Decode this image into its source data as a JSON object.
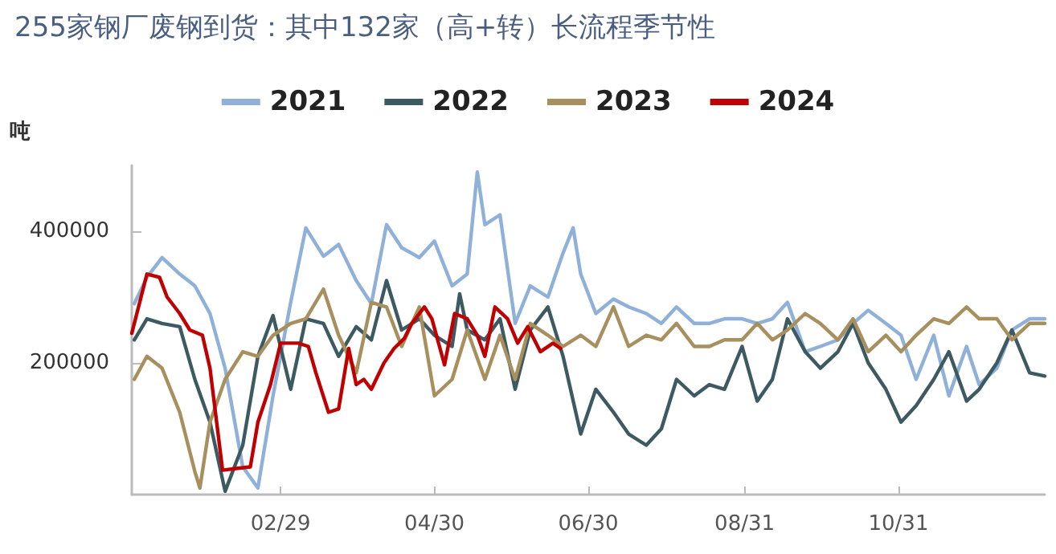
{
  "chart_data": {
    "type": "line",
    "title": "255家钢厂废钢到货：其中132家（高+转）长流程季节性",
    "ylabel": "吨",
    "legend": "top",
    "grid": false,
    "marker": "none",
    "line_style": "solid",
    "xlim": [
      "--01-01",
      "--12-28"
    ],
    "ylim": [
      0,
      500000
    ],
    "yticks": [
      200000,
      400000
    ],
    "xticks": [
      {
        "value": "--02-29",
        "label": "02/29"
      },
      {
        "value": "--04-30",
        "label": "04/30"
      },
      {
        "value": "--06-30",
        "label": "06/30"
      },
      {
        "value": "--08-31",
        "label": "08/31"
      },
      {
        "value": "--10-31",
        "label": "10/31"
      }
    ],
    "series": [
      {
        "name": "2021",
        "color": "#8fb1d9",
        "x": [
          "--01-02",
          "--01-07",
          "--01-13",
          "--01-20",
          "--01-26",
          "--02-01",
          "--02-07",
          "--02-14",
          "--02-20",
          "--02-26",
          "--03-04",
          "--03-10",
          "--03-17",
          "--03-23",
          "--03-30",
          "--04-05",
          "--04-11",
          "--04-17",
          "--04-24",
          "--04-30",
          "--05-07",
          "--05-13",
          "--05-17",
          "--05-20",
          "--05-26",
          "--06-01",
          "--06-07",
          "--06-14",
          "--06-20",
          "--06-24",
          "--06-27",
          "--07-03",
          "--07-10",
          "--07-16",
          "--07-23",
          "--07-29",
          "--08-04",
          "--08-11",
          "--08-17",
          "--08-23",
          "--08-30",
          "--09-05",
          "--09-11",
          "--09-17",
          "--09-24",
          "--09-30",
          "--10-07",
          "--10-13",
          "--10-19",
          "--10-26",
          "--11-01",
          "--11-07",
          "--11-14",
          "--11-20",
          "--11-27",
          "--12-02",
          "--12-09",
          "--12-15",
          "--12-22",
          "--12-28"
        ],
        "values": [
          290000,
          330000,
          360000,
          335000,
          317000,
          275000,
          192000,
          42000,
          10000,
          150000,
          292000,
          405000,
          362000,
          380000,
          325000,
          290000,
          410000,
          375000,
          360000,
          385000,
          317000,
          335000,
          490000,
          410000,
          425000,
          260000,
          317000,
          300000,
          367000,
          405000,
          335000,
          275000,
          297000,
          285000,
          275000,
          260000,
          285000,
          260000,
          260000,
          267000,
          267000,
          260000,
          267000,
          292000,
          217000,
          225000,
          235000,
          260000,
          280000,
          260000,
          242000,
          175000,
          242000,
          150000,
          225000,
          167000,
          192000,
          250000,
          267000,
          267000
        ]
      },
      {
        "name": "2022",
        "color": "#3d5a63",
        "x": [
          "--01-02",
          "--01-07",
          "--01-13",
          "--01-20",
          "--01-26",
          "--02-01",
          "--02-07",
          "--02-14",
          "--02-20",
          "--02-26",
          "--03-04",
          "--03-10",
          "--03-17",
          "--03-23",
          "--03-30",
          "--04-05",
          "--04-11",
          "--04-17",
          "--04-24",
          "--04-30",
          "--05-07",
          "--05-10",
          "--05-13",
          "--05-20",
          "--05-26",
          "--06-01",
          "--06-07",
          "--06-14",
          "--06-20",
          "--06-27",
          "--07-03",
          "--07-10",
          "--07-16",
          "--07-23",
          "--07-29",
          "--08-04",
          "--08-11",
          "--08-17",
          "--08-23",
          "--08-30",
          "--09-05",
          "--09-11",
          "--09-17",
          "--09-24",
          "--09-30",
          "--10-07",
          "--10-13",
          "--10-19",
          "--10-26",
          "--11-01",
          "--11-07",
          "--11-14",
          "--11-20",
          "--11-27",
          "--12-02",
          "--12-09",
          "--12-15",
          "--12-22",
          "--12-28"
        ],
        "values": [
          235000,
          267000,
          260000,
          255000,
          175000,
          110000,
          5000,
          75000,
          210000,
          272000,
          160000,
          267000,
          260000,
          210000,
          255000,
          235000,
          325000,
          250000,
          267000,
          242000,
          225000,
          305000,
          250000,
          235000,
          267000,
          160000,
          250000,
          285000,
          210000,
          92000,
          160000,
          125000,
          92000,
          75000,
          100000,
          175000,
          150000,
          167000,
          160000,
          225000,
          142000,
          175000,
          267000,
          217000,
          192000,
          217000,
          260000,
          200000,
          160000,
          110000,
          135000,
          175000,
          217000,
          142000,
          160000,
          200000,
          250000,
          185000,
          180000
        ]
      },
      {
        "name": "2023",
        "color": "#a88f5e",
        "x": [
          "--01-02",
          "--01-07",
          "--01-13",
          "--01-20",
          "--01-26",
          "--01-28",
          "--02-01",
          "--02-07",
          "--02-14",
          "--02-20",
          "--02-26",
          "--03-04",
          "--03-10",
          "--03-17",
          "--03-23",
          "--03-30",
          "--04-05",
          "--04-11",
          "--04-17",
          "--04-24",
          "--04-30",
          "--05-07",
          "--05-13",
          "--05-20",
          "--05-26",
          "--06-01",
          "--06-07",
          "--06-14",
          "--06-20",
          "--06-27",
          "--07-03",
          "--07-10",
          "--07-16",
          "--07-23",
          "--07-29",
          "--08-04",
          "--08-11",
          "--08-17",
          "--08-23",
          "--08-30",
          "--09-05",
          "--09-11",
          "--09-17",
          "--09-24",
          "--09-30",
          "--10-07",
          "--10-13",
          "--10-19",
          "--10-26",
          "--11-01",
          "--11-07",
          "--11-14",
          "--11-20",
          "--11-27",
          "--12-02",
          "--12-09",
          "--12-15",
          "--12-22",
          "--12-28"
        ],
        "values": [
          175000,
          210000,
          192000,
          125000,
          35000,
          10000,
          110000,
          175000,
          217000,
          210000,
          242000,
          260000,
          267000,
          312000,
          242000,
          185000,
          292000,
          285000,
          225000,
          285000,
          150000,
          175000,
          250000,
          175000,
          242000,
          175000,
          260000,
          242000,
          225000,
          242000,
          225000,
          285000,
          225000,
          242000,
          235000,
          260000,
          225000,
          225000,
          235000,
          235000,
          260000,
          235000,
          250000,
          275000,
          260000,
          235000,
          267000,
          217000,
          242000,
          217000,
          242000,
          267000,
          260000,
          285000,
          267000,
          267000,
          235000,
          260000,
          260000
        ]
      },
      {
        "name": "2024",
        "color": "#c00000",
        "x": [
          "--01-01",
          "--01-07",
          "--01-12",
          "--01-15",
          "--01-20",
          "--01-24",
          "--01-29",
          "--02-01",
          "--02-06",
          "--02-12",
          "--02-17",
          "--02-20",
          "--02-25",
          "--02-29",
          "--03-07",
          "--03-11",
          "--03-14",
          "--03-19",
          "--03-23",
          "--03-27",
          "--03-30",
          "--04-02",
          "--04-05",
          "--04-10",
          "--04-14",
          "--04-18",
          "--04-21",
          "--04-26",
          "--04-29",
          "--05-04",
          "--05-08",
          "--05-13",
          "--05-17",
          "--05-20",
          "--05-24",
          "--05-29",
          "--06-02",
          "--06-06",
          "--06-11",
          "--06-16",
          "--06-19"
        ],
        "values": [
          245000,
          335000,
          330000,
          300000,
          275000,
          250000,
          242000,
          192000,
          37000,
          40000,
          42000,
          110000,
          167000,
          230000,
          230000,
          225000,
          185000,
          125000,
          130000,
          222000,
          167000,
          175000,
          160000,
          200000,
          222000,
          237000,
          260000,
          285000,
          267000,
          197000,
          275000,
          267000,
          242000,
          210000,
          285000,
          267000,
          230000,
          255000,
          217000,
          230000,
          222000
        ]
      }
    ]
  }
}
